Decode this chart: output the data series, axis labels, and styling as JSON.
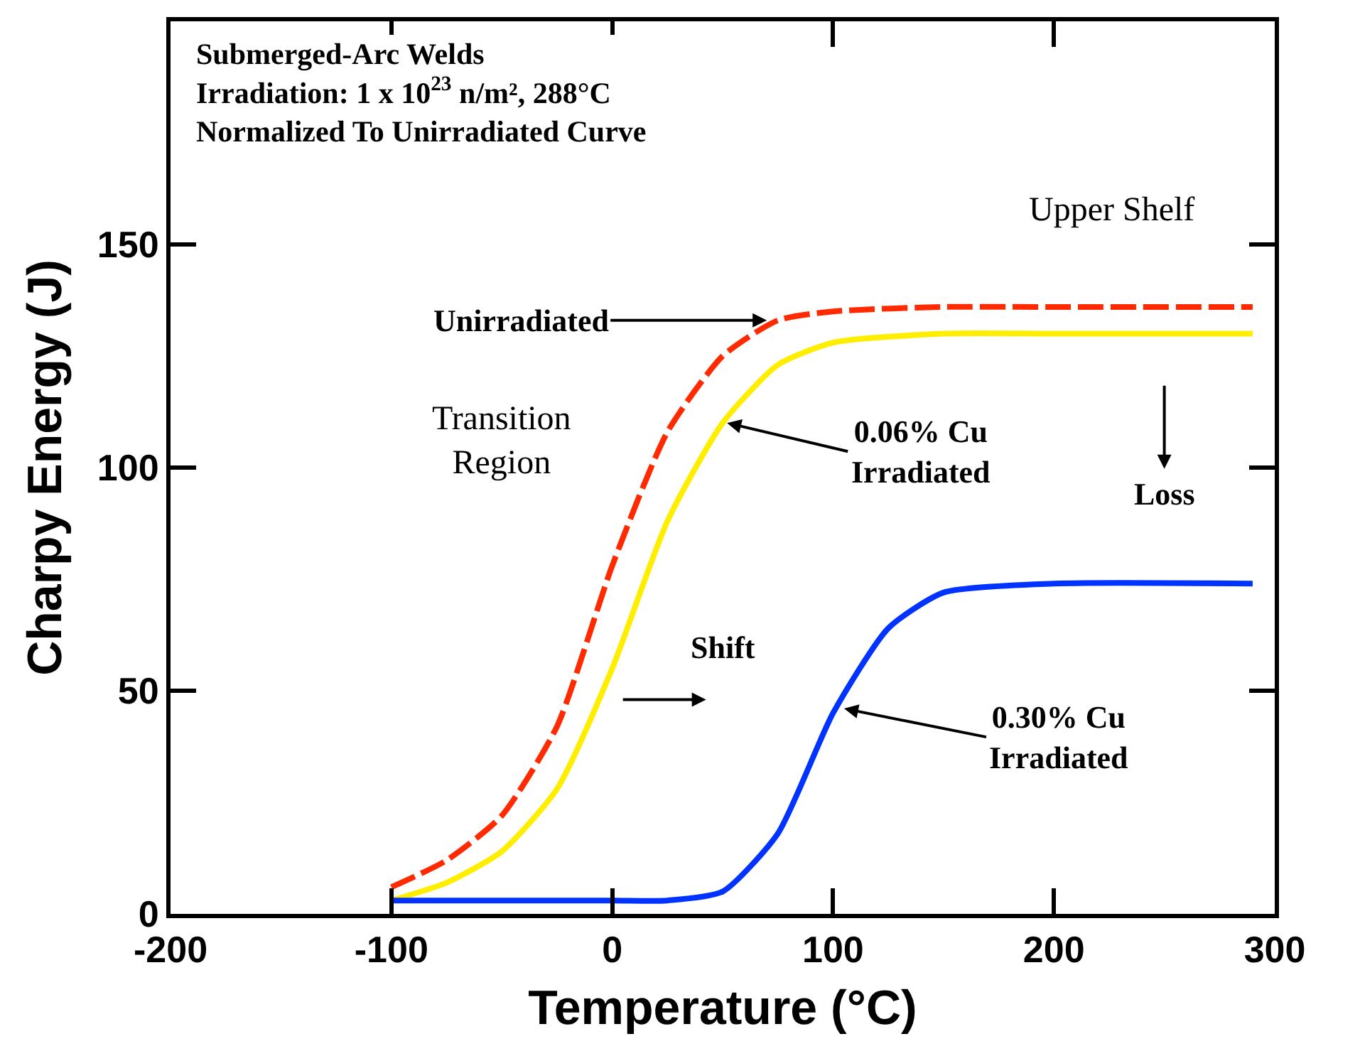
{
  "chart_data": {
    "type": "line",
    "xlabel": "Temperature (°C)",
    "ylabel": "Charpy Energy (J)",
    "xlim": [
      -200,
      300
    ],
    "xticks": [
      -200,
      -100,
      0,
      100,
      200,
      300
    ],
    "ylim": [
      0,
      200
    ],
    "yticks": [
      0,
      50,
      100,
      150
    ],
    "marker": "none",
    "series": [
      {
        "color": "#ff2a00",
        "line_style": "dashed",
        "x": [
          -100,
          -75,
          -50,
          -25,
          0,
          25,
          50,
          75,
          100,
          150,
          200,
          290
        ],
        "values": [
          6,
          12,
          22,
          42,
          78,
          108,
          125,
          133,
          135,
          136,
          136,
          136
        ]
      },
      {
        "color": "#ffee00",
        "line_style": "solid",
        "x": [
          -100,
          -75,
          -50,
          -25,
          0,
          25,
          50,
          75,
          100,
          150,
          200,
          290
        ],
        "values": [
          3,
          7,
          14,
          28,
          55,
          88,
          110,
          123,
          128,
          130,
          130,
          130
        ]
      },
      {
        "color": "#0033ff",
        "line_style": "solid",
        "x": [
          -100,
          0,
          25,
          50,
          75,
          100,
          125,
          150,
          200,
          290
        ],
        "values": [
          3,
          3,
          3,
          5,
          18,
          45,
          64,
          72,
          74,
          74
        ]
      }
    ],
    "annotations": [
      "Submerged-Arc Welds\nIrradiation: 1 x 10$^{23}$ n/m², 288°C\nNormalized To Unirradiated Curve",
      "Upper Shelf",
      "Transition\nRegion",
      "Loss",
      "Shift",
      {
        "text": "Unirradiated",
        "x": 70,
        "y": 133
      },
      {
        "text": "0.06% Cu\nIrradiated",
        "x": 52,
        "y": 110
      },
      {
        "text": "0.30% Cu\nIrradiated",
        "x": 105,
        "y": 46
      }
    ]
  }
}
